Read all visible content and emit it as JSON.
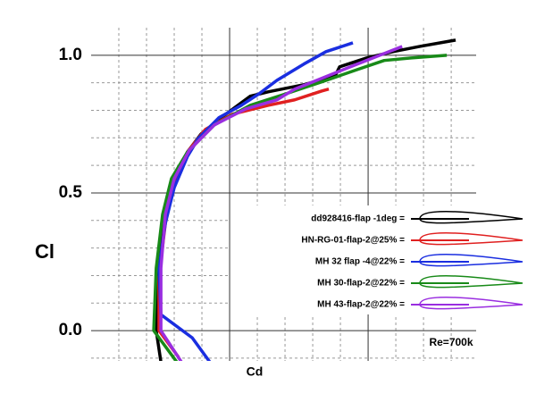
{
  "chart_data": {
    "type": "line",
    "x_label": "Cd",
    "y_label": "Cl",
    "annotation": "Re=700k",
    "xlim": [
      0.005,
      0.0189
    ],
    "ylim": [
      -0.11,
      1.1
    ],
    "yticks": [
      {
        "value": 0,
        "label": "0.0"
      },
      {
        "value": 0.5,
        "label": "0.5"
      },
      {
        "value": 1,
        "label": "1.0"
      }
    ],
    "xgrid_major": [
      0.01,
      0.015
    ],
    "xgrid_minor": [
      0.006,
      0.007,
      0.008,
      0.009,
      0.011,
      0.012,
      0.013,
      0.014,
      0.016,
      0.017,
      0.018
    ],
    "ygrid_minor": [
      -0.1,
      0.1,
      0.2,
      0.3,
      0.4,
      0.6,
      0.7,
      0.8,
      0.9
    ],
    "grid": true,
    "series": [
      {
        "name": "dd928416-flap -1deg =",
        "color": "#000000",
        "x": [
          0.00752,
          0.00735,
          0.00742,
          0.00768,
          0.008,
          0.00848,
          0.00897,
          0.00977,
          0.01074,
          0.01139,
          0.01268,
          0.01381,
          0.01397,
          0.01494,
          0.0159,
          0.01687,
          0.01816
        ],
        "values": [
          -0.114,
          0,
          0.227,
          0.422,
          0.552,
          0.649,
          0.714,
          0.779,
          0.851,
          0.867,
          0.893,
          0.925,
          0.958,
          0.99,
          1.013,
          1.032,
          1.055
        ]
      },
      {
        "name": "HN-RG-01-flap-2@25% =",
        "color": "#e02020",
        "x": [
          0.00816,
          0.00745,
          0.00745,
          0.00768,
          0.008,
          0.00848,
          0.00913,
          0.0101,
          0.01139,
          0.01235,
          0.01332,
          0.01358
        ],
        "values": [
          -0.097,
          0,
          0.195,
          0.39,
          0.536,
          0.649,
          0.731,
          0.786,
          0.818,
          0.838,
          0.87,
          0.877
        ]
      },
      {
        "name": "MH 32 flap -4@22% =",
        "color": "#1a2ee0",
        "x": [
          0.00935,
          0.00865,
          0.00752,
          0.00745,
          0.00768,
          0.008,
          0.00848,
          0.00887,
          0.00961,
          0.01042,
          0.01106,
          0.01171,
          0.01268,
          0.01348,
          0.01445
        ],
        "values": [
          -0.123,
          -0.026,
          0.058,
          0.227,
          0.39,
          0.519,
          0.633,
          0.698,
          0.773,
          0.818,
          0.86,
          0.909,
          0.968,
          1.013,
          1.045
        ]
      },
      {
        "name": "MH 30-flap-2@22% =",
        "color": "#188a18",
        "x": [
          0.00816,
          0.00726,
          0.00735,
          0.00758,
          0.0079,
          0.00848,
          0.00945,
          0.01074,
          0.01203,
          0.01332,
          0.01461,
          0.01558,
          0.01655,
          0.01784
        ],
        "values": [
          -0.123,
          0,
          0.227,
          0.422,
          0.552,
          0.649,
          0.747,
          0.818,
          0.86,
          0.903,
          0.948,
          0.981,
          0.99,
          1.0
        ]
      },
      {
        "name": "MH 43-flap-2@22% =",
        "color": "#9a2ee0",
        "x": [
          0.00832,
          0.00752,
          0.00752,
          0.00768,
          0.008,
          0.00855,
          0.00945,
          0.01058,
          0.01171,
          0.01235,
          0.01332,
          0.01461,
          0.01623
        ],
        "values": [
          -0.123,
          0,
          0.227,
          0.422,
          0.552,
          0.656,
          0.747,
          0.805,
          0.838,
          0.877,
          0.916,
          0.968,
          1.032
        ]
      }
    ]
  }
}
